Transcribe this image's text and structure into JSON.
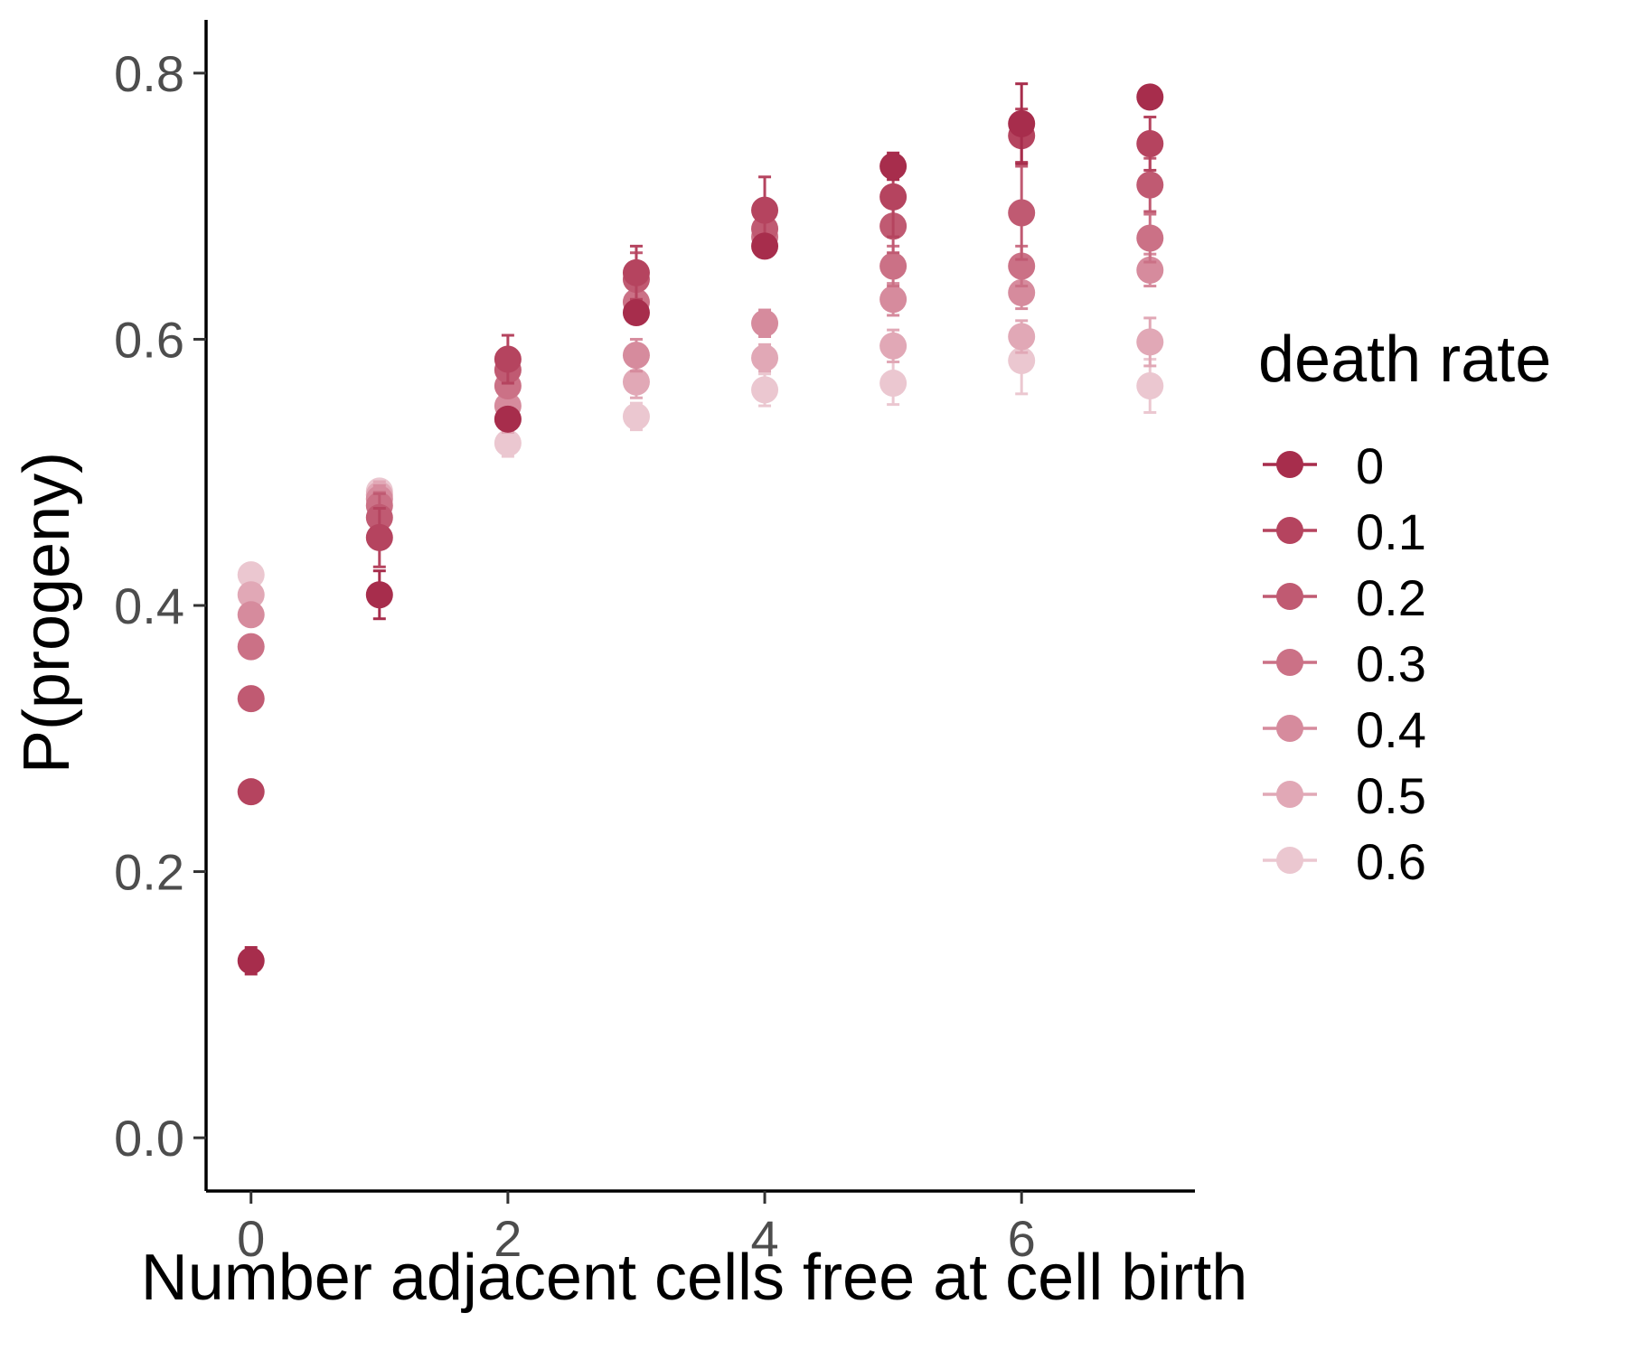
{
  "chart_data": {
    "type": "scatter",
    "xlabel": "Number adjacent cells free at cell birth",
    "ylabel": "P(progeny)",
    "xlim": [
      -0.35,
      7.35
    ],
    "ylim": [
      -0.04,
      0.84
    ],
    "x_ticks": [
      0,
      2,
      4,
      6
    ],
    "x_tick_labels": [
      "0",
      "2",
      "4",
      "6"
    ],
    "y_ticks": [
      0.0,
      0.2,
      0.4,
      0.6,
      0.8
    ],
    "y_tick_labels": [
      "0.0",
      "0.2",
      "0.4",
      "0.6",
      "0.8"
    ],
    "grid": false,
    "error_bars": true,
    "legend": {
      "title": "death rate",
      "placement": "right"
    },
    "x": [
      0,
      1,
      2,
      3,
      4,
      5,
      6,
      7
    ],
    "series": [
      {
        "name": "0",
        "color": "#A72D4C",
        "y": [
          0.133,
          0.408,
          0.54,
          0.62,
          0.67,
          0.73,
          0.762,
          0.782
        ],
        "err": [
          0.01,
          0.018,
          0.008,
          0.008,
          0.008,
          0.01,
          0.03,
          0.008
        ]
      },
      {
        "name": "0.1",
        "color": "#B5445F",
        "y": [
          0.26,
          0.451,
          0.585,
          0.65,
          0.697,
          0.707,
          0.753,
          0.747
        ],
        "err": [
          0.006,
          0.022,
          0.018,
          0.02,
          0.025,
          0.03,
          0.02,
          0.02
        ]
      },
      {
        "name": "0.2",
        "color": "#C05A72",
        "y": [
          0.33,
          0.466,
          0.577,
          0.645,
          0.683,
          0.685,
          0.695,
          0.716
        ],
        "err": [
          0.006,
          0.018,
          0.008,
          0.02,
          0.018,
          0.02,
          0.035,
          0.02
        ]
      },
      {
        "name": "0.3",
        "color": "#CB7186",
        "y": [
          0.369,
          0.475,
          0.565,
          0.628,
          0.677,
          0.655,
          0.655,
          0.676
        ],
        "err": [
          0.006,
          0.01,
          0.008,
          0.015,
          0.015,
          0.015,
          0.015,
          0.018
        ]
      },
      {
        "name": "0.4",
        "color": "#D68B9D",
        "y": [
          0.393,
          0.48,
          0.55,
          0.588,
          0.612,
          0.63,
          0.635,
          0.652
        ],
        "err": [
          0.006,
          0.01,
          0.01,
          0.012,
          0.01,
          0.012,
          0.012,
          0.012
        ]
      },
      {
        "name": "0.5",
        "color": "#E1A8B6",
        "y": [
          0.408,
          0.483,
          0.54,
          0.568,
          0.586,
          0.595,
          0.602,
          0.598
        ],
        "err": [
          0.006,
          0.01,
          0.01,
          0.012,
          0.01,
          0.012,
          0.012,
          0.018
        ]
      },
      {
        "name": "0.6",
        "color": "#EBC7D0",
        "y": [
          0.423,
          0.486,
          0.522,
          0.542,
          0.562,
          0.567,
          0.584,
          0.565
        ],
        "err": [
          0.006,
          0.008,
          0.01,
          0.01,
          0.012,
          0.016,
          0.025,
          0.02
        ]
      }
    ]
  }
}
